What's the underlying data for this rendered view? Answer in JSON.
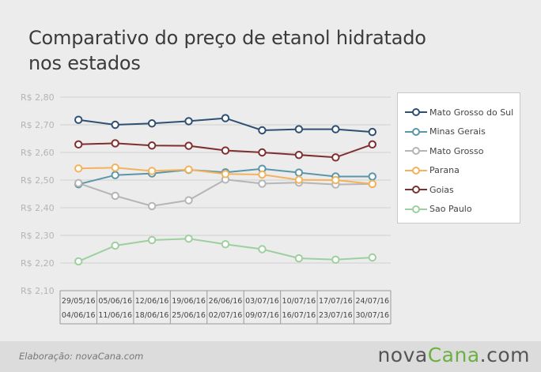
{
  "title_line1": "Comparativo do preço de etanol hidratado",
  "title_line2": "nos estados",
  "credit": "Elaboração: novaCana.com",
  "logo": {
    "part1": "nova",
    "part2": "Cana",
    "part3": ".com"
  },
  "chart_data": {
    "type": "line",
    "y_ticks": [
      "R$ 2,80",
      "R$ 2,70",
      "R$ 2,60",
      "R$ 2,50",
      "R$ 2,40",
      "R$ 2,30",
      "R$ 2,20",
      "R$ 2,10"
    ],
    "ylim": [
      2.1,
      2.8
    ],
    "grid": true,
    "legend_position": "right",
    "categories": [
      [
        "29/05/16",
        "04/06/16"
      ],
      [
        "05/06/16",
        "11/06/16"
      ],
      [
        "12/06/16",
        "18/06/16"
      ],
      [
        "19/06/16",
        "25/06/16"
      ],
      [
        "26/06/16",
        "02/07/16"
      ],
      [
        "03/07/16",
        "09/07/16"
      ],
      [
        "10/07/16",
        "16/07/16"
      ],
      [
        "17/07/16",
        "23/07/16"
      ],
      [
        "24/07/16",
        "30/07/16"
      ]
    ],
    "series": [
      {
        "name": "Mato Grosso do Sul",
        "color": "#2f4f72",
        "values": [
          2.718,
          2.7,
          2.705,
          2.713,
          2.724,
          2.68,
          2.684,
          2.684,
          2.674
        ]
      },
      {
        "name": "Minas Gerais",
        "color": "#5b96a8",
        "values": [
          2.485,
          2.518,
          2.524,
          2.537,
          2.528,
          2.541,
          2.527,
          2.513,
          2.513
        ]
      },
      {
        "name": "Mato Grosso",
        "color": "#b5b5b5",
        "values": [
          2.489,
          2.443,
          2.406,
          2.427,
          2.502,
          2.487,
          2.491,
          2.484,
          2.486
        ]
      },
      {
        "name": "Parana",
        "color": "#f2b35c",
        "values": [
          2.542,
          2.545,
          2.533,
          2.538,
          2.522,
          2.52,
          2.501,
          2.5,
          2.486
        ]
      },
      {
        "name": "Goias",
        "color": "#7e3030",
        "values": [
          2.629,
          2.633,
          2.625,
          2.624,
          2.607,
          2.6,
          2.591,
          2.582,
          2.629
        ]
      },
      {
        "name": "Sao Paulo",
        "color": "#9ecf9e",
        "values": [
          2.206,
          2.263,
          2.283,
          2.288,
          2.268,
          2.25,
          2.217,
          2.212,
          2.22
        ]
      }
    ]
  }
}
